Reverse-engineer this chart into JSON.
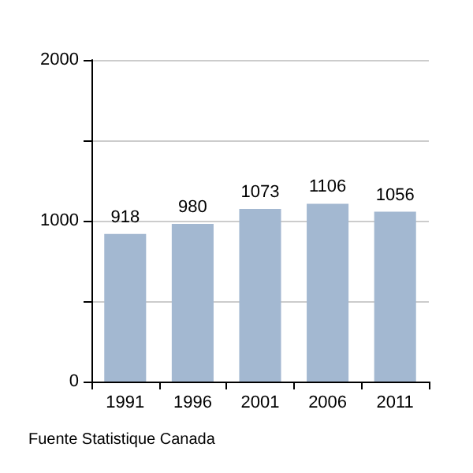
{
  "chart_data": {
    "type": "bar",
    "categories": [
      "1991",
      "1996",
      "2001",
      "2006",
      "2011"
    ],
    "values": [
      918,
      980,
      1073,
      1106,
      1056
    ],
    "color": "#a3b8d1",
    "ylim": [
      0,
      2000
    ],
    "yticks": [
      0,
      {
        "value": 500,
        "label": null
      },
      1000,
      {
        "value": 1500,
        "label": null
      },
      2000
    ],
    "grid": "y",
    "data_labels": true,
    "annotations": [
      "Fuente Statistique Canada"
    ]
  }
}
